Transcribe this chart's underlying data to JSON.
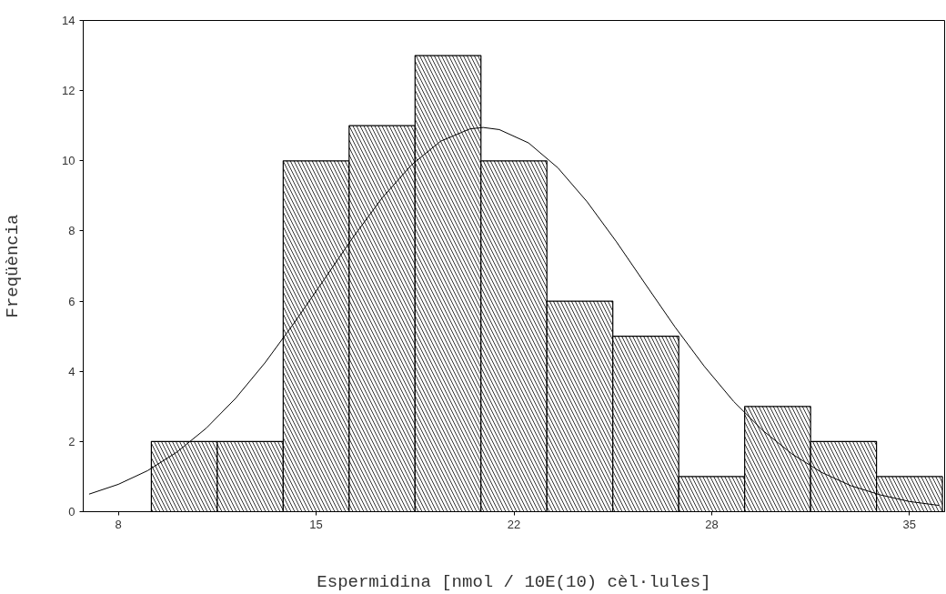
{
  "chart_data": {
    "type": "histogram",
    "xlabel": "Espermidina [nmol / 10E(10) cèl·lules]",
    "ylabel": "Freqüència",
    "bins": [
      9.125,
      11.375,
      13.625,
      15.875,
      18.125,
      20.375,
      22.625,
      24.875,
      27.125,
      29.375,
      31.625,
      33.875,
      36.125
    ],
    "values": [
      2,
      2,
      10,
      11,
      13,
      10,
      6,
      5,
      1,
      3,
      2,
      1
    ],
    "color": "#000000",
    "xlim": [
      6.8,
      36.2
    ],
    "xticks": [
      8,
      {
        "value": 14.75,
        "label": "15"
      },
      {
        "value": 21.5,
        "label": "22"
      },
      {
        "value": 28.25,
        "label": "28"
      },
      35
    ],
    "ylim": [
      0,
      14
    ],
    "yticks": [
      0,
      2,
      4,
      6,
      8,
      10,
      12,
      14
    ],
    "grid": false,
    "series": [
      {
        "type": "line",
        "color": "#000000",
        "x": [
          7,
          8,
          9,
          10,
          11,
          12,
          13,
          14,
          15,
          16,
          17,
          18,
          19,
          20,
          20.45,
          21,
          22,
          23,
          24,
          25,
          26,
          27,
          28,
          29,
          30,
          31,
          32,
          33,
          34,
          35,
          36
        ],
        "values": [
          0.5,
          0.78,
          1.17,
          1.7,
          2.38,
          3.23,
          4.24,
          5.38,
          6.59,
          7.81,
          8.94,
          9.88,
          10.56,
          10.91,
          10.95,
          10.89,
          10.51,
          9.8,
          8.83,
          7.69,
          6.47,
          5.26,
          4.14,
          3.14,
          2.31,
          1.64,
          1.12,
          0.74,
          0.48,
          0.29,
          0.18
        ]
      }
    ]
  }
}
